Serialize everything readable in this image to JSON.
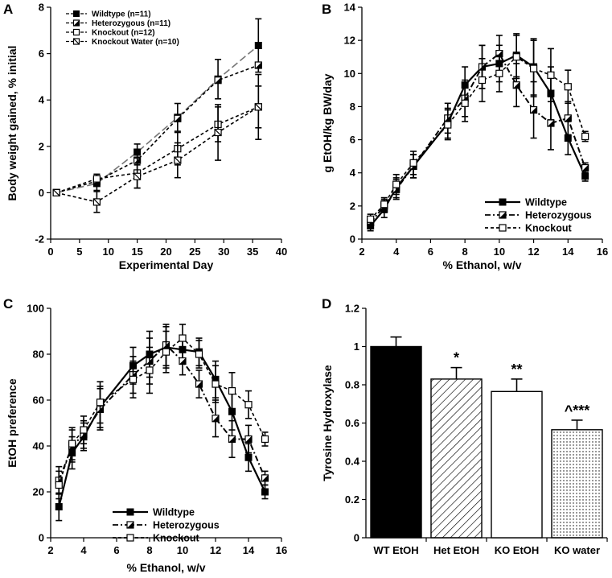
{
  "chart_data": [
    {
      "panel": "A",
      "type": "line",
      "xlabel": "Experimental Day",
      "ylabel": "Body weight gained, % initial",
      "xlim": [
        0,
        40
      ],
      "ylim": [
        -2,
        8
      ],
      "xticks": [
        0,
        5,
        10,
        15,
        20,
        25,
        30,
        35,
        40
      ],
      "yticks": [
        -2,
        0,
        2,
        4,
        6,
        8
      ],
      "legend_position": "top-left",
      "x": [
        1,
        8,
        15,
        22,
        29,
        36
      ],
      "series": [
        {
          "name": "Wildtype (n=11)",
          "marker": "filled-square",
          "line": "dashed-long",
          "values": [
            0,
            0.4,
            1.75,
            3.25,
            4.9,
            6.35
          ],
          "errors": [
            0,
            0.3,
            0.35,
            0.6,
            0.85,
            1.15
          ]
        },
        {
          "name": "Heterozygous (n=11)",
          "marker": "half-square",
          "line": "dashed",
          "values": [
            0,
            0.5,
            1.4,
            3.2,
            4.85,
            5.5
          ],
          "errors": [
            0,
            0,
            0,
            0,
            0,
            0
          ]
        },
        {
          "name": "Knockout (n=12)",
          "marker": "open-square",
          "line": "dashed",
          "values": [
            0,
            0.6,
            0.85,
            1.9,
            2.95,
            3.7
          ],
          "errors": [
            0,
            0.2,
            0.65,
            0.7,
            0.75,
            0.9
          ]
        },
        {
          "name": "Knockout Water (n=10)",
          "marker": "diag-square",
          "line": "dashed",
          "values": [
            0,
            -0.4,
            0.7,
            1.4,
            2.6,
            3.7
          ],
          "errors": [
            0,
            0.45,
            0.5,
            0.75,
            1.2,
            1.4
          ]
        }
      ]
    },
    {
      "panel": "B",
      "type": "line",
      "xlabel": "% Ethanol, w/v",
      "ylabel": "g EtOH/kg BW/day",
      "xlim": [
        2,
        16
      ],
      "ylim": [
        0,
        14
      ],
      "xticks": [
        2,
        4,
        6,
        8,
        10,
        12,
        14,
        16
      ],
      "yticks": [
        0,
        2,
        4,
        6,
        8,
        10,
        12,
        14
      ],
      "legend_position": "bottom-right",
      "x": [
        2.5,
        3.3,
        4,
        5,
        7,
        8,
        9,
        10,
        11,
        12,
        13,
        14,
        15
      ],
      "series": [
        {
          "name": "Wildtype",
          "marker": "filled-square",
          "line": "solid",
          "values": [
            0.8,
            1.8,
            3.1,
            4.4,
            7.0,
            9.3,
            10.4,
            10.6,
            11.1,
            10.4,
            8.8,
            6.1,
            3.8
          ],
          "errors": [
            0.3,
            0.5,
            0.6,
            0.7,
            0.9,
            1.1,
            1.3,
            1.1,
            1.3,
            1.7,
            1.6,
            1.0,
            0.3
          ]
        },
        {
          "name": "Heterozygous",
          "marker": "half-square",
          "line": "dash-dot",
          "values": [
            1.0,
            2.0,
            3.0,
            4.4,
            7.3,
            8.5,
            10.4,
            11.2,
            9.3,
            7.8,
            7.0,
            7.3,
            4.3
          ],
          "errors": [
            0.3,
            0.4,
            0.6,
            0.7,
            0.9,
            1.1,
            1.3,
            1.1,
            1.3,
            1.7,
            1.6,
            1.0,
            0.3
          ]
        },
        {
          "name": "Knockout",
          "marker": "open-square",
          "line": "dashed",
          "values": [
            1.2,
            2.1,
            3.3,
            4.6,
            6.9,
            8.2,
            9.6,
            10.0,
            11.0,
            10.3,
            9.9,
            9.2,
            6.2
          ],
          "errors": [
            0.3,
            0.4,
            0.6,
            0.7,
            0.9,
            1.1,
            1.3,
            1.1,
            1.3,
            1.7,
            1.6,
            1.0,
            0.3
          ]
        }
      ]
    },
    {
      "panel": "C",
      "type": "line",
      "xlabel": "% Ethanol, w/v",
      "ylabel": "EtOH preference",
      "xlim": [
        2,
        16
      ],
      "ylim": [
        0,
        100
      ],
      "xticks": [
        2,
        4,
        6,
        8,
        10,
        12,
        14,
        16
      ],
      "yticks": [
        0,
        20,
        40,
        60,
        80,
        100
      ],
      "legend_position": "bottom-center",
      "x": [
        2.5,
        3.3,
        4,
        5,
        7,
        8,
        9,
        10,
        11,
        12,
        13,
        14,
        15
      ],
      "series": [
        {
          "name": "Wildtype",
          "marker": "filled-square",
          "line": "solid",
          "values": [
            13.5,
            37,
            44,
            57,
            75,
            80,
            83,
            82,
            81,
            69,
            55,
            35,
            20
          ],
          "errors": [
            6,
            7,
            6,
            9,
            8,
            10,
            9,
            6,
            6,
            8,
            8,
            6,
            3
          ]
        },
        {
          "name": "Heterozygous",
          "marker": "half-square",
          "line": "dash-dot",
          "values": [
            25,
            40,
            45,
            56,
            71,
            77,
            84,
            77,
            67,
            52,
            43,
            43,
            26
          ],
          "errors": [
            6,
            7,
            6,
            9,
            8,
            10,
            9,
            6,
            6,
            8,
            8,
            6,
            3
          ]
        },
        {
          "name": "Knockout",
          "marker": "open-square",
          "line": "dashed",
          "values": [
            23,
            41,
            47,
            59,
            69,
            73,
            81,
            87,
            80,
            67,
            64,
            58,
            43
          ],
          "errors": [
            6,
            7,
            6,
            9,
            8,
            10,
            9,
            6,
            6,
            8,
            8,
            6,
            3
          ]
        }
      ]
    },
    {
      "panel": "D",
      "type": "bar",
      "xlabel": "",
      "ylabel": "Tyrosine Hydroxylase",
      "ylim": [
        0,
        1.2
      ],
      "yticks": [
        0,
        0.2,
        0.4,
        0.6,
        0.8,
        1.0,
        1.2
      ],
      "ytick_labels": [
        "0",
        "0.2",
        "0.4",
        "0.6",
        "0.8",
        "1",
        "1.2"
      ],
      "categories": [
        "WT EtOH",
        "Het EtOH",
        "KO EtOH",
        "KO water"
      ],
      "values": [
        1.0,
        0.83,
        0.765,
        0.565
      ],
      "errors": [
        0.05,
        0.06,
        0.065,
        0.05
      ],
      "fills": [
        "solid-black",
        "hatched",
        "white",
        "dotted"
      ],
      "annotations": [
        "",
        "*",
        "**",
        "^***"
      ]
    }
  ],
  "colors": {
    "ink": "#000000",
    "background": "#ffffff",
    "wt_line": "#777777"
  },
  "panel_letters": {
    "a": "A",
    "b": "B",
    "c": "C",
    "d": "D"
  }
}
